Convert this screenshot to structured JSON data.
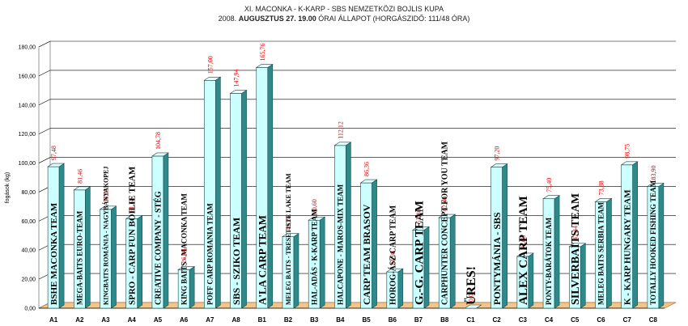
{
  "chart_data": {
    "type": "bar",
    "title_line1": "XI.  MACONKA - K-KARP - SBS NEMZETKÖZI BOJLIS KUPA",
    "title_line2_prefix": "2008.",
    "title_line2_bold": "AUGUSZTUS 27. 19.00",
    "title_line2_suffix": "ÓRAI ÁLLAPOT (HORGÁSZIDŐ: 111/48 ÓRA)",
    "ylabel": "fogások (kg)",
    "ylim": [
      0,
      180
    ],
    "yticks": [
      "0,00",
      "20,00",
      "40,00",
      "60,00",
      "80,00",
      "100,00",
      "120,00",
      "140,00",
      "160,00",
      "180,00"
    ],
    "grid": true,
    "categories": [
      "A1",
      "A2",
      "A3",
      "A4",
      "A5",
      "A6",
      "A7",
      "A8",
      "B1",
      "B2",
      "B3",
      "B4",
      "B5",
      "B6",
      "B7",
      "B8",
      "C1",
      "C2",
      "C3",
      "C4",
      "C5",
      "C6",
      "C7",
      "C8"
    ],
    "values": [
      97.48,
      81.46,
      68.08,
      61.68,
      104.78,
      26.44,
      157.0,
      147.94,
      165.76,
      49.24,
      60.6,
      112.12,
      86.36,
      24.98,
      53.86,
      62.4,
      0.0,
      97.2,
      35.68,
      75.4,
      42.44,
      73.38,
      98.75,
      83.9
    ],
    "value_labels": [
      "97,48",
      "81,46",
      "68,08",
      "61,68",
      "104,78",
      "26,44",
      "157,00",
      "147,94",
      "165,76",
      "49,24",
      "60,60",
      "112,12",
      "86,36",
      "24,98",
      "53,86",
      "62,40",
      "0,00",
      "97,20",
      "35,68",
      "75,40",
      "42,44",
      "73,38",
      "98,75",
      "83,90"
    ],
    "team_names": [
      "BSHE MACONKA TEAM",
      "MEGA-BAITS EURO-TEAM",
      "KINGBAITS ROMÁNIA - NAGYBÁNYAKOPEJ",
      "SPRO - CARP FUN BOILIE TEAM",
      "CREATIVE COMPANY - STÉG",
      "KING BAITS - MACONKA TEAM",
      "POFF CARP ROMANIA TEAM",
      "SBS - SZIKO TEAM",
      "A'LA CARP TEAM",
      "MELEG BAITS - TRESETISTE LAKE TEAM",
      "HAL-ADÁS - K-KARP TEAM",
      "HALCAPONE - MAROS-MIX TEAM",
      "CARP TEAM BRASOV",
      "HOROG-ÁSZ CARP TEAM",
      "G.-G. CARP TEAM",
      "CARPHUNTER CONCEPT FOR YOU TEAM",
      "ÜRES!",
      "PONTYMÁNIA - SBS",
      "ALEX CARP TEAM",
      "PONTY-BARÁTOK TEAM",
      "SILVERBAITS TEAM",
      "MELEG BAITS SERBIA TEAM",
      "K - KARP HUNGARY TEAM",
      "TOTALLY HOOKED FISHING TEAM"
    ],
    "bar_color": "#ccffff",
    "bar_side_color": "#2e8a8a",
    "floor_color": "#f4c58a",
    "value_label_color": "#e00000",
    "legend": "none"
  }
}
